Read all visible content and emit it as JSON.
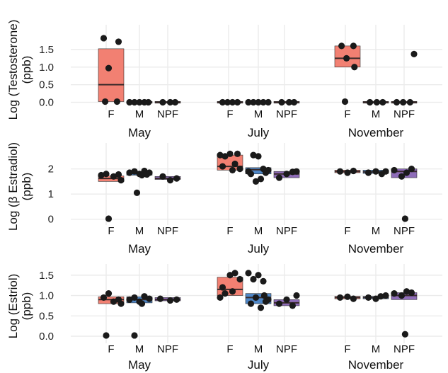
{
  "colors": {
    "F": "#F28072",
    "M": "#4E86C6",
    "NPF": "#8E6CB8",
    "grid": "#EBEBEB",
    "point": "#1a1a1a",
    "median": "#3a2a2a"
  },
  "chart_data": [
    {
      "type": "boxplot",
      "ylabel": [
        "Log (Testosterone)",
        "(ppb)"
      ],
      "ylim": [
        -0.15,
        2.0
      ],
      "yticks": [
        0.0,
        0.5,
        1.0,
        1.5
      ],
      "ytick_labels": [
        "0.0",
        "0.5",
        "1.0",
        "1.5"
      ],
      "months": [
        {
          "name": "May",
          "groups": [
            {
              "label": "F",
              "box": [
                0.02,
                0.5,
                1.52
              ],
              "points": [
                [
                  -0.15,
                  1.82
                ],
                [
                  0.15,
                  1.72
                ],
                [
                  -0.05,
                  0.97
                ],
                [
                  -0.12,
                  0.02
                ],
                [
                  0.12,
                  0.02
                ]
              ]
            },
            {
              "label": "M",
              "box": [
                0.0,
                0.0,
                0.0
              ],
              "points": [
                [
                  -0.2,
                  0
                ],
                [
                  -0.1,
                  0
                ],
                [
                  0,
                  0
                ],
                [
                  0.1,
                  0
                ],
                [
                  0.18,
                  0
                ]
              ]
            },
            {
              "label": "NPF",
              "box": [
                0.0,
                0.0,
                0.0
              ],
              "points": [
                [
                  -0.1,
                  0
                ],
                [
                  0.05,
                  0
                ],
                [
                  0.15,
                  0
                ]
              ]
            }
          ]
        },
        {
          "name": "July",
          "groups": [
            {
              "label": "F",
              "box": [
                0.0,
                0.0,
                0.0
              ],
              "points": [
                [
                  -0.15,
                  0
                ],
                [
                  -0.05,
                  0
                ],
                [
                  0.05,
                  0
                ],
                [
                  0.15,
                  0
                ]
              ]
            },
            {
              "label": "M",
              "box": [
                0.0,
                0.0,
                0.0
              ],
              "points": [
                [
                  -0.2,
                  0
                ],
                [
                  -0.1,
                  0
                ],
                [
                  0,
                  0
                ],
                [
                  0.1,
                  0
                ],
                [
                  0.2,
                  0
                ]
              ]
            },
            {
              "label": "NPF",
              "box": [
                0.0,
                0.0,
                0.0
              ],
              "points": [
                [
                  -0.1,
                  0
                ],
                [
                  0.05,
                  0
                ],
                [
                  0.15,
                  0
                ]
              ]
            }
          ]
        },
        {
          "name": "November",
          "groups": [
            {
              "label": "F",
              "box": [
                1.0,
                1.25,
                1.6
              ],
              "points": [
                [
                  -0.12,
                  1.6
                ],
                [
                  0.12,
                  1.6
                ],
                [
                  -0.02,
                  1.25
                ],
                [
                  0.14,
                  1.0
                ],
                [
                  -0.05,
                  0.02
                ]
              ]
            },
            {
              "label": "M",
              "box": [
                0.0,
                0.0,
                0.0
              ],
              "points": [
                [
                  -0.12,
                  0
                ],
                [
                  0.02,
                  0
                ],
                [
                  0.14,
                  0
                ]
              ]
            },
            {
              "label": "NPF",
              "box": [
                0.0,
                0.0,
                0.0
              ],
              "points": [
                [
                  -0.15,
                  0
                ],
                [
                  -0.02,
                  0
                ],
                [
                  0.12,
                  0
                ],
                [
                  0.2,
                  1.37
                ]
              ]
            }
          ]
        }
      ]
    },
    {
      "type": "boxplot",
      "ylabel": [
        "Log (β Estradiol)",
        "(ppb)"
      ],
      "ylim": [
        -0.15,
        2.75
      ],
      "yticks": [
        0,
        1,
        2
      ],
      "ytick_labels": [
        "0",
        "1",
        "2"
      ],
      "months": [
        {
          "name": "May",
          "groups": [
            {
              "label": "F",
              "box": [
                1.5,
                1.62,
                1.72
              ],
              "points": [
                [
                  -0.2,
                  1.75
                ],
                [
                  -0.1,
                  1.8
                ],
                [
                  0.05,
                  1.7
                ],
                [
                  0.15,
                  1.78
                ],
                [
                  0.2,
                  1.55
                ],
                [
                  -0.05,
                  0.02
                ]
              ]
            },
            {
              "label": "M",
              "box": [
                1.75,
                1.82,
                1.9
              ],
              "points": [
                [
                  -0.2,
                  1.85
                ],
                [
                  -0.1,
                  1.9
                ],
                [
                  0,
                  1.8
                ],
                [
                  0.1,
                  1.92
                ],
                [
                  0.2,
                  1.85
                ],
                [
                  0.05,
                  1.75
                ],
                [
                  0.15,
                  1.78
                ],
                [
                  -0.05,
                  1.05
                ]
              ]
            },
            {
              "label": "NPF",
              "box": [
                1.58,
                1.62,
                1.7
              ],
              "points": [
                [
                  -0.1,
                  1.7
                ],
                [
                  0.05,
                  1.55
                ],
                [
                  0.18,
                  1.62
                ]
              ]
            }
          ]
        },
        {
          "name": "July",
          "groups": [
            {
              "label": "F",
              "box": [
                1.95,
                2.1,
                2.55
              ],
              "points": [
                [
                  -0.2,
                  2.55
                ],
                [
                  -0.1,
                  2.5
                ],
                [
                  0,
                  2.6
                ],
                [
                  0.1,
                  2.2
                ],
                [
                  0.2,
                  2.0
                ],
                [
                  -0.15,
                  2.1
                ],
                [
                  0.05,
                  1.95
                ],
                [
                  0.15,
                  2.6
                ]
              ]
            },
            {
              "label": "M",
              "box": [
                1.8,
                1.97,
                2.05
              ],
              "points": [
                [
                  -0.2,
                  1.9
                ],
                [
                  -0.1,
                  2.55
                ],
                [
                  0,
                  2.5
                ],
                [
                  0.1,
                  2.0
                ],
                [
                  0.2,
                  1.95
                ],
                [
                  -0.15,
                  1.8
                ],
                [
                  0.05,
                  1.6
                ],
                [
                  0.15,
                  1.85
                ],
                [
                  -0.05,
                  1.5
                ]
              ]
            },
            {
              "label": "NPF",
              "box": [
                1.65,
                1.8,
                1.9
              ],
              "points": [
                [
                  -0.15,
                  1.65
                ],
                [
                  0,
                  1.8
                ],
                [
                  0.12,
                  1.88
                ],
                [
                  0.2,
                  1.9
                ]
              ]
            }
          ]
        },
        {
          "name": "November",
          "groups": [
            {
              "label": "F",
              "box": [
                1.85,
                1.9,
                1.95
              ],
              "points": [
                [
                  -0.15,
                  1.9
                ],
                [
                  0,
                  1.85
                ],
                [
                  0.12,
                  1.92
                ]
              ]
            },
            {
              "label": "M",
              "box": [
                1.82,
                1.88,
                1.95
              ],
              "points": [
                [
                  -0.15,
                  1.85
                ],
                [
                  0,
                  1.9
                ],
                [
                  0.12,
                  1.8
                ],
                [
                  0.2,
                  1.9
                ]
              ]
            },
            {
              "label": "NPF",
              "box": [
                1.65,
                1.9,
                2.0
              ],
              "points": [
                [
                  -0.2,
                  1.95
                ],
                [
                  -0.05,
                  1.7
                ],
                [
                  0.05,
                  1.85
                ],
                [
                  0.15,
                  2.0
                ],
                [
                  0.02,
                  0.02
                ]
              ]
            }
          ]
        }
      ]
    },
    {
      "type": "boxplot",
      "ylabel": [
        "Log (Estriol)",
        "(ppb)"
      ],
      "ylim": [
        -0.12,
        1.6
      ],
      "yticks": [
        0.0,
        0.5,
        1.0,
        1.5
      ],
      "ytick_labels": [
        "0.0",
        "0.5",
        "1.0",
        "1.5"
      ],
      "months": [
        {
          "name": "May",
          "groups": [
            {
              "label": "F",
              "box": [
                0.8,
                0.9,
                0.97
              ],
              "points": [
                [
                  -0.15,
                  0.95
                ],
                [
                  -0.05,
                  1.05
                ],
                [
                  0.05,
                  0.85
                ],
                [
                  0.15,
                  0.9
                ],
                [
                  0.2,
                  0.8
                ],
                [
                  -0.1,
                  0.02
                ]
              ]
            },
            {
              "label": "M",
              "box": [
                0.82,
                0.9,
                0.97
              ],
              "points": [
                [
                  -0.2,
                  0.9
                ],
                [
                  -0.1,
                  0.95
                ],
                [
                  0,
                  0.85
                ],
                [
                  0.1,
                  0.98
                ],
                [
                  0.2,
                  0.92
                ],
                [
                  0.05,
                  0.8
                ],
                [
                  -0.1,
                  0.02
                ]
              ]
            },
            {
              "label": "NPF",
              "box": [
                0.87,
                0.9,
                0.95
              ],
              "points": [
                [
                  -0.15,
                  0.92
                ],
                [
                  0.05,
                  0.88
                ],
                [
                  0.18,
                  0.9
                ]
              ]
            }
          ]
        },
        {
          "name": "July",
          "groups": [
            {
              "label": "F",
              "box": [
                1.0,
                1.15,
                1.45
              ],
              "points": [
                [
                  -0.2,
                  0.95
                ],
                [
                  -0.1,
                  1.05
                ],
                [
                  0,
                  1.5
                ],
                [
                  0.1,
                  1.55
                ],
                [
                  0.2,
                  1.4
                ],
                [
                  0.05,
                  1.1
                ],
                [
                  -0.15,
                  1.2
                ]
              ]
            },
            {
              "label": "M",
              "box": [
                0.8,
                0.95,
                1.05
              ],
              "points": [
                [
                  -0.2,
                  1.55
                ],
                [
                  -0.1,
                  1.4
                ],
                [
                  0,
                  1.5
                ],
                [
                  0.1,
                  1.35
                ],
                [
                  0.2,
                  0.9
                ],
                [
                  -0.15,
                  0.8
                ],
                [
                  0.05,
                  0.7
                ],
                [
                  0.15,
                  0.85
                ],
                [
                  -0.05,
                  0.95
                ],
                [
                  0.12,
                  1.0
                ]
              ]
            },
            {
              "label": "NPF",
              "box": [
                0.75,
                0.82,
                0.9
              ],
              "points": [
                [
                  -0.15,
                  0.8
                ],
                [
                  0,
                  0.9
                ],
                [
                  0.12,
                  0.75
                ],
                [
                  0.2,
                  1.0
                ]
              ]
            }
          ]
        },
        {
          "name": "November",
          "groups": [
            {
              "label": "F",
              "box": [
                0.92,
                0.95,
                0.98
              ],
              "points": [
                [
                  -0.15,
                  0.95
                ],
                [
                  0,
                  0.97
                ],
                [
                  0.12,
                  0.92
                ]
              ]
            },
            {
              "label": "M",
              "box": [
                0.92,
                0.95,
                0.98
              ],
              "points": [
                [
                  -0.15,
                  0.95
                ],
                [
                  0,
                  0.92
                ],
                [
                  0.1,
                  0.98
                ],
                [
                  0.2,
                  1.0
                ]
              ]
            },
            {
              "label": "NPF",
              "box": [
                0.9,
                1.0,
                1.07
              ],
              "points": [
                [
                  -0.2,
                  1.05
                ],
                [
                  -0.05,
                  1.0
                ],
                [
                  0.05,
                  1.1
                ],
                [
                  0.15,
                  1.07
                ],
                [
                  0.02,
                  0.05
                ]
              ]
            }
          ]
        }
      ]
    }
  ]
}
